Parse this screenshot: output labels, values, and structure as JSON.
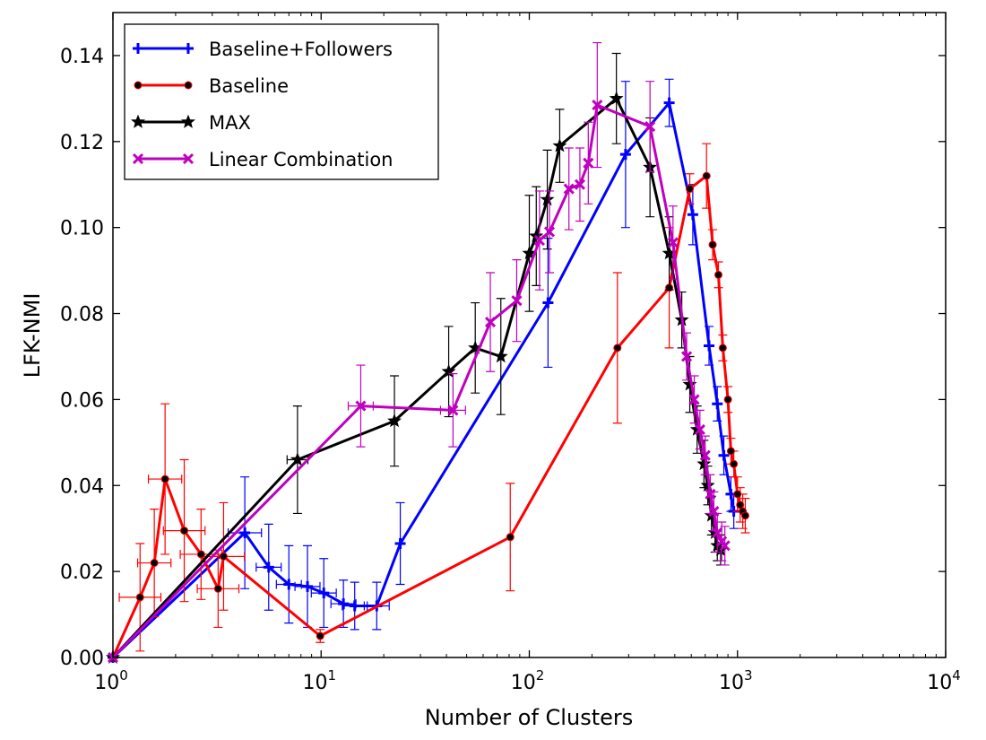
{
  "chart_data": {
    "type": "line",
    "title": "",
    "xlabel": "Number of Clusters",
    "ylabel": "LFK-NMI",
    "xscale": "log",
    "xlim": [
      1,
      10000
    ],
    "ylim": [
      0,
      0.15
    ],
    "x_ticks": [
      1,
      10,
      100,
      1000,
      10000
    ],
    "x_tick_labels": [
      {
        "base": "10",
        "exp": "0"
      },
      {
        "base": "10",
        "exp": "1"
      },
      {
        "base": "10",
        "exp": "2"
      },
      {
        "base": "10",
        "exp": "3"
      },
      {
        "base": "10",
        "exp": "4"
      }
    ],
    "y_ticks": [
      0,
      0.02,
      0.04,
      0.06,
      0.08,
      0.1,
      0.12,
      0.14
    ],
    "y_tick_labels": [
      "0.00",
      "0.02",
      "0.04",
      "0.06",
      "0.08",
      "0.10",
      "0.12",
      "0.14"
    ],
    "grid": false,
    "legend_position": "top-left",
    "series": [
      {
        "name": "Baseline+Followers",
        "color": "#0000ff",
        "marker": "plus",
        "points": [
          {
            "x": 1,
            "y": 0.0,
            "yerr": 0
          },
          {
            "x": 4.3,
            "y": 0.029,
            "yerr": 0.013,
            "xerr": 0.08
          },
          {
            "x": 5.6,
            "y": 0.021,
            "yerr": 0.01,
            "xerr": 0.06
          },
          {
            "x": 7,
            "y": 0.017,
            "yerr": 0.009,
            "xerr": 0.06
          },
          {
            "x": 8.6,
            "y": 0.0165,
            "yerr": 0.0095,
            "xerr": 0.06
          },
          {
            "x": 10.3,
            "y": 0.015,
            "yerr": 0.008,
            "xerr": 0.06
          },
          {
            "x": 12.8,
            "y": 0.0125,
            "yerr": 0.0055,
            "xerr": 0.06
          },
          {
            "x": 14.5,
            "y": 0.012,
            "yerr": 0.0055,
            "xerr": 0.06
          },
          {
            "x": 18.5,
            "y": 0.012,
            "yerr": 0.0055,
            "xerr": 0.06
          },
          {
            "x": 24,
            "y": 0.0265,
            "yerr": 0.0095
          },
          {
            "x": 123,
            "y": 0.0825,
            "yerr": 0.015
          },
          {
            "x": 290,
            "y": 0.117,
            "yerr": 0.017
          },
          {
            "x": 470,
            "y": 0.129,
            "yerr": 0.0055
          },
          {
            "x": 610,
            "y": 0.103,
            "yerr": 0.007
          },
          {
            "x": 730,
            "y": 0.0725,
            "yerr": 0.0045
          },
          {
            "x": 800,
            "y": 0.059,
            "yerr": 0.004
          },
          {
            "x": 860,
            "y": 0.047,
            "yerr": 0.0045
          },
          {
            "x": 930,
            "y": 0.038,
            "yerr": 0.004
          },
          {
            "x": 960,
            "y": 0.034,
            "yerr": 0.004
          }
        ]
      },
      {
        "name": "Baseline",
        "color": "#ff0000",
        "marker": "dot",
        "points": [
          {
            "x": 1,
            "y": 0.0,
            "yerr": 0
          },
          {
            "x": 1.35,
            "y": 0.014,
            "yerr": 0.0125,
            "xerr": 0.1
          },
          {
            "x": 1.58,
            "y": 0.022,
            "yerr": 0.0125,
            "xerr": 0.08
          },
          {
            "x": 1.78,
            "y": 0.0415,
            "yerr": 0.0175,
            "xerr": 0.08
          },
          {
            "x": 2.2,
            "y": 0.0295,
            "yerr": 0.0165,
            "xerr": 0.1
          },
          {
            "x": 2.65,
            "y": 0.024,
            "yerr": 0.0105,
            "xerr": 0.1
          },
          {
            "x": 3.2,
            "y": 0.016,
            "yerr": 0.009,
            "xerr": 0.1
          },
          {
            "x": 3.4,
            "y": 0.0235,
            "yerr": 0.0125,
            "xerr": 0.1
          },
          {
            "x": 9.9,
            "y": 0.005,
            "yerr": 0.0015
          },
          {
            "x": 81,
            "y": 0.028,
            "yerr": 0.0125
          },
          {
            "x": 265,
            "y": 0.072,
            "yerr": 0.0175
          },
          {
            "x": 470,
            "y": 0.086,
            "yerr": 0.014
          },
          {
            "x": 590,
            "y": 0.109,
            "yerr": 0.0035
          },
          {
            "x": 710,
            "y": 0.112,
            "yerr": 0.0075
          },
          {
            "x": 760,
            "y": 0.096,
            "yerr": 0.0035
          },
          {
            "x": 810,
            "y": 0.089,
            "yerr": 0.003
          },
          {
            "x": 850,
            "y": 0.072,
            "yerr": 0.003
          },
          {
            "x": 900,
            "y": 0.06,
            "yerr": 0.003
          },
          {
            "x": 930,
            "y": 0.048,
            "yerr": 0.003
          },
          {
            "x": 960,
            "y": 0.045,
            "yerr": 0.003
          },
          {
            "x": 1000,
            "y": 0.038,
            "yerr": 0.004
          },
          {
            "x": 1030,
            "y": 0.0355,
            "yerr": 0.004
          },
          {
            "x": 1060,
            "y": 0.034,
            "yerr": 0.004
          },
          {
            "x": 1090,
            "y": 0.033,
            "yerr": 0.004
          }
        ]
      },
      {
        "name": "MAX",
        "color": "#000000",
        "marker": "star",
        "points": [
          {
            "x": 1,
            "y": 0.0,
            "yerr": 0
          },
          {
            "x": 7.7,
            "y": 0.046,
            "yerr": 0.0125,
            "xerr": 0.05
          },
          {
            "x": 22.5,
            "y": 0.055,
            "yerr": 0.0105
          },
          {
            "x": 41,
            "y": 0.0665,
            "yerr": 0.0105
          },
          {
            "x": 55,
            "y": 0.072,
            "yerr": 0.0105
          },
          {
            "x": 73,
            "y": 0.07,
            "yerr": 0.0135
          },
          {
            "x": 100,
            "y": 0.094,
            "yerr": 0.0135
          },
          {
            "x": 108,
            "y": 0.098,
            "yerr": 0.0115
          },
          {
            "x": 122,
            "y": 0.1065,
            "yerr": 0.0115
          },
          {
            "x": 140,
            "y": 0.119,
            "yerr": 0.0085
          },
          {
            "x": 262,
            "y": 0.13,
            "yerr": 0.0105
          },
          {
            "x": 380,
            "y": 0.114,
            "yerr": 0.0115
          },
          {
            "x": 470,
            "y": 0.094,
            "yerr": 0.0085
          },
          {
            "x": 540,
            "y": 0.0785,
            "yerr": 0.0065
          },
          {
            "x": 590,
            "y": 0.0635,
            "yerr": 0.0065
          },
          {
            "x": 640,
            "y": 0.053,
            "yerr": 0.0055
          },
          {
            "x": 690,
            "y": 0.045,
            "yerr": 0.0055
          },
          {
            "x": 720,
            "y": 0.04,
            "yerr": 0.0045
          },
          {
            "x": 750,
            "y": 0.033,
            "yerr": 0.0045
          },
          {
            "x": 780,
            "y": 0.029,
            "yerr": 0.0045
          },
          {
            "x": 800,
            "y": 0.026,
            "yerr": 0.0035
          },
          {
            "x": 830,
            "y": 0.025,
            "yerr": 0.0035
          }
        ]
      },
      {
        "name": "Linear Combination",
        "color": "#bf00bf",
        "marker": "x",
        "points": [
          {
            "x": 1,
            "y": 0.0,
            "yerr": 0
          },
          {
            "x": 15.5,
            "y": 0.0585,
            "yerr": 0.0095,
            "xerr": 0.06
          },
          {
            "x": 43,
            "y": 0.0575,
            "yerr": 0.0085,
            "xerr": 0.06
          },
          {
            "x": 65,
            "y": 0.078,
            "yerr": 0.0115
          },
          {
            "x": 87,
            "y": 0.083,
            "yerr": 0.0095
          },
          {
            "x": 112,
            "y": 0.097,
            "yerr": 0.0115
          },
          {
            "x": 125,
            "y": 0.099,
            "yerr": 0.0095
          },
          {
            "x": 155,
            "y": 0.109,
            "yerr": 0.0095
          },
          {
            "x": 175,
            "y": 0.11,
            "yerr": 0.0085
          },
          {
            "x": 192,
            "y": 0.115,
            "yerr": 0.0095
          },
          {
            "x": 212,
            "y": 0.1285,
            "yerr": 0.0145
          },
          {
            "x": 380,
            "y": 0.1235,
            "yerr": 0.0105
          },
          {
            "x": 490,
            "y": 0.0965,
            "yerr": 0.0085
          },
          {
            "x": 570,
            "y": 0.07,
            "yerr": 0.0055
          },
          {
            "x": 620,
            "y": 0.06,
            "yerr": 0.0055
          },
          {
            "x": 660,
            "y": 0.053,
            "yerr": 0.0045
          },
          {
            "x": 700,
            "y": 0.047,
            "yerr": 0.0045
          },
          {
            "x": 740,
            "y": 0.038,
            "yerr": 0.0045
          },
          {
            "x": 770,
            "y": 0.034,
            "yerr": 0.0045
          },
          {
            "x": 800,
            "y": 0.029,
            "yerr": 0.0045
          },
          {
            "x": 840,
            "y": 0.027,
            "yerr": 0.0045
          },
          {
            "x": 870,
            "y": 0.026,
            "yerr": 0.0045
          }
        ]
      }
    ]
  }
}
